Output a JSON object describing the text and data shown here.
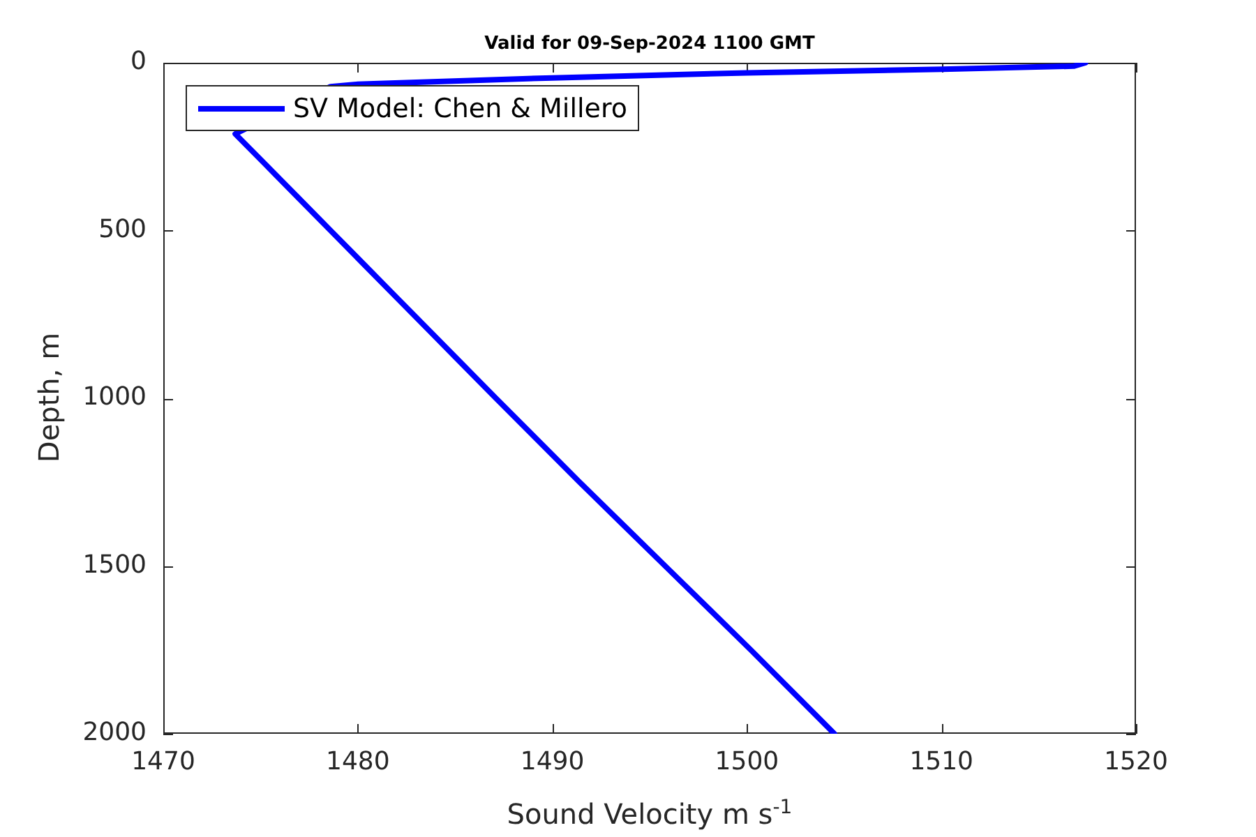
{
  "chart_data": {
    "type": "line",
    "title": "Valid for 09-Sep-2024 1100 GMT",
    "xlabel": "Sound Velocity m s$^{-1}$",
    "ylabel": "Depth, m",
    "xlim": [
      1470,
      1520
    ],
    "ylim": [
      2000,
      0
    ],
    "xticks": [
      1470,
      1480,
      1490,
      1500,
      1510,
      1520
    ],
    "yticks": [
      0,
      500,
      1000,
      1500,
      2000
    ],
    "grid": false,
    "legend": "top left",
    "marker": "none",
    "line_style": "solid",
    "series": [
      {
        "name": "SV Model: Chen & Millero",
        "color": "#0000ff",
        "x": [
          1517.4,
          1516.8,
          1510.1,
          1500.0,
          1490.0,
          1480.0,
          1478.6,
          1473.7,
          1475.2,
          1476.9,
          1478.6,
          1480.3,
          1482.0,
          1483.7,
          1487.1,
          1491.4,
          1495.8,
          1500.2,
          1504.5
        ],
        "values": [
          0,
          10,
          19,
          30,
          45,
          64,
          71,
          212,
          300,
          400,
          500,
          600,
          700,
          800,
          1000,
          1250,
          1500,
          1750,
          2000
        ]
      }
    ]
  }
}
